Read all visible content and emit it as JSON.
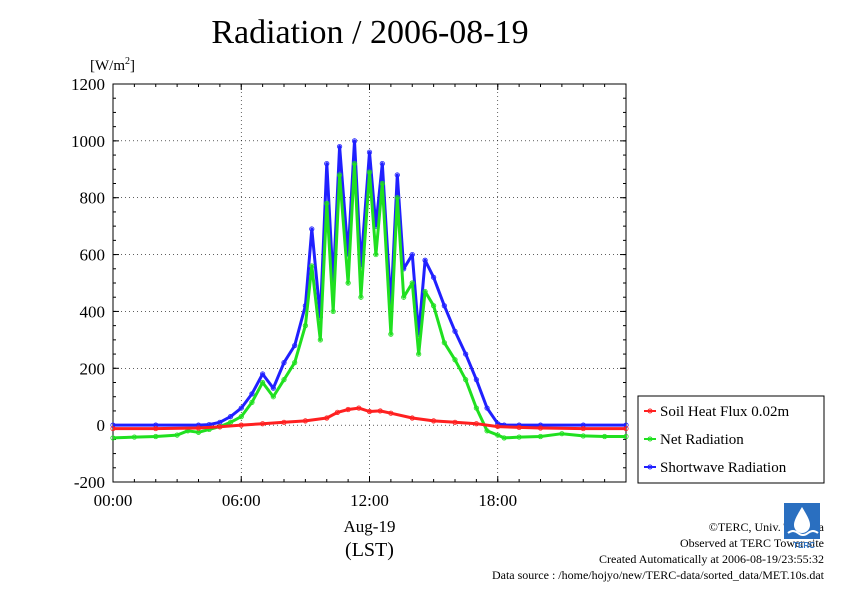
{
  "chart_data": {
    "type": "line",
    "title": "Radiation / 2006-08-19",
    "ylabel_unit": "[W/m",
    "ylabel_unit_sup": "2",
    "ylabel_unit_close": "]",
    "xlabel_date": "Aug-19",
    "xlabel": "(LST)",
    "ylim": [
      -200,
      1200
    ],
    "xlim": [
      0,
      24
    ],
    "yticks": [
      -200,
      0,
      200,
      400,
      600,
      800,
      1000,
      1200
    ],
    "xticks": [
      {
        "value": 0,
        "label": "00:00"
      },
      {
        "value": 6,
        "label": "06:00"
      },
      {
        "value": 12,
        "label": "12:00"
      },
      {
        "value": 18,
        "label": "18:00"
      }
    ],
    "legend_position": "right",
    "series": [
      {
        "name": "Soil Heat Flux 0.02m",
        "color": "#ff2020",
        "x": [
          0,
          2,
          4,
          5,
          6,
          7,
          8,
          9,
          10,
          10.5,
          11,
          11.5,
          12,
          12.5,
          13,
          14,
          15,
          16,
          17,
          18,
          19,
          20,
          22,
          24
        ],
        "y": [
          -12,
          -12,
          -10,
          -6,
          0,
          5,
          10,
          15,
          25,
          45,
          55,
          60,
          48,
          50,
          42,
          25,
          15,
          10,
          5,
          -5,
          -8,
          -10,
          -12,
          -12
        ]
      },
      {
        "name": "Net Radiation",
        "color": "#20e020",
        "x": [
          0,
          1,
          2,
          3,
          3.5,
          4,
          4.5,
          5,
          5.5,
          6,
          6.5,
          7,
          7.5,
          8,
          8.5,
          9,
          9.3,
          9.7,
          10,
          10.3,
          10.6,
          11,
          11.3,
          11.6,
          12,
          12.3,
          12.6,
          13,
          13.3,
          13.6,
          14,
          14.3,
          14.6,
          15,
          15.5,
          16,
          16.5,
          17,
          17.5,
          18,
          18.3,
          19,
          20,
          21,
          22,
          23,
          24
        ],
        "y": [
          -45,
          -42,
          -40,
          -35,
          -20,
          -25,
          -15,
          -5,
          10,
          30,
          80,
          150,
          100,
          160,
          220,
          350,
          560,
          300,
          780,
          400,
          880,
          500,
          920,
          450,
          890,
          600,
          850,
          320,
          800,
          450,
          500,
          250,
          470,
          420,
          290,
          230,
          160,
          60,
          -20,
          -35,
          -45,
          -42,
          -40,
          -30,
          -38,
          -40,
          -40
        ]
      },
      {
        "name": "Shortwave Radiation",
        "color": "#2020ff",
        "x": [
          0,
          2,
          4,
          4.5,
          5,
          5.5,
          6,
          6.5,
          7,
          7.5,
          8,
          8.5,
          9,
          9.3,
          9.7,
          10,
          10.3,
          10.6,
          11,
          11.3,
          11.6,
          12,
          12.3,
          12.6,
          13,
          13.3,
          13.6,
          14,
          14.3,
          14.6,
          15,
          15.5,
          16,
          16.5,
          17,
          17.5,
          18,
          18.3,
          19,
          20,
          22,
          24
        ],
        "y": [
          0,
          0,
          0,
          2,
          10,
          30,
          60,
          110,
          180,
          130,
          220,
          280,
          420,
          690,
          380,
          920,
          500,
          980,
          600,
          1000,
          560,
          960,
          700,
          920,
          420,
          880,
          550,
          600,
          320,
          580,
          520,
          420,
          330,
          250,
          160,
          60,
          5,
          0,
          0,
          0,
          0,
          0
        ]
      }
    ]
  },
  "footer": {
    "copyright": "©TERC, Univ. Tsukuba",
    "observed": "Observed at TERC Tower site",
    "created": "Created Automatically at 2006-08-19/23:55:32",
    "source": "Data source : /home/hojyo/new/TERC-data/sorted_data/MET.10s.dat"
  },
  "logo": {
    "text": "TERC",
    "icon": "terc-logo-icon"
  }
}
